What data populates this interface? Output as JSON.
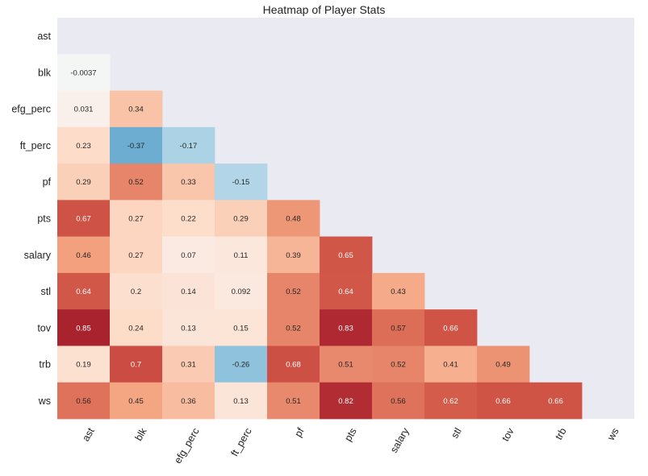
{
  "chart_data": {
    "type": "heatmap",
    "title": "Heatmap of Player Stats",
    "xlabel": "",
    "ylabel": "",
    "variables": [
      "ast",
      "blk",
      "efg_perc",
      "ft_perc",
      "pf",
      "pts",
      "salary",
      "stl",
      "tov",
      "trb",
      "ws"
    ],
    "mask": "upper-triangle-including-diagonal",
    "color_scale": {
      "min": -1,
      "max": 1,
      "colormap": "RdBu_r"
    },
    "background_color": "#eaeaf2",
    "lower_triangle_values": [
      [],
      [
        "-0.0037"
      ],
      [
        "0.031",
        "0.34"
      ],
      [
        "0.23",
        "-0.37",
        "-0.17"
      ],
      [
        "0.29",
        "0.52",
        "0.33",
        "-0.15"
      ],
      [
        "0.67",
        "0.27",
        "0.22",
        "0.29",
        "0.48"
      ],
      [
        "0.46",
        "0.27",
        "0.07",
        "0.11",
        "0.39",
        "0.65"
      ],
      [
        "0.64",
        "0.2",
        "0.14",
        "0.092",
        "0.52",
        "0.64",
        "0.43"
      ],
      [
        "0.85",
        "0.24",
        "0.13",
        "0.15",
        "0.52",
        "0.83",
        "0.57",
        "0.66"
      ],
      [
        "0.19",
        "0.7",
        "0.31",
        "-0.26",
        "0.68",
        "0.51",
        "0.52",
        "0.41",
        "0.49"
      ],
      [
        "0.56",
        "0.45",
        "0.36",
        "0.13",
        "0.51",
        "0.82",
        "0.56",
        "0.62",
        "0.66",
        "0.66"
      ]
    ]
  }
}
